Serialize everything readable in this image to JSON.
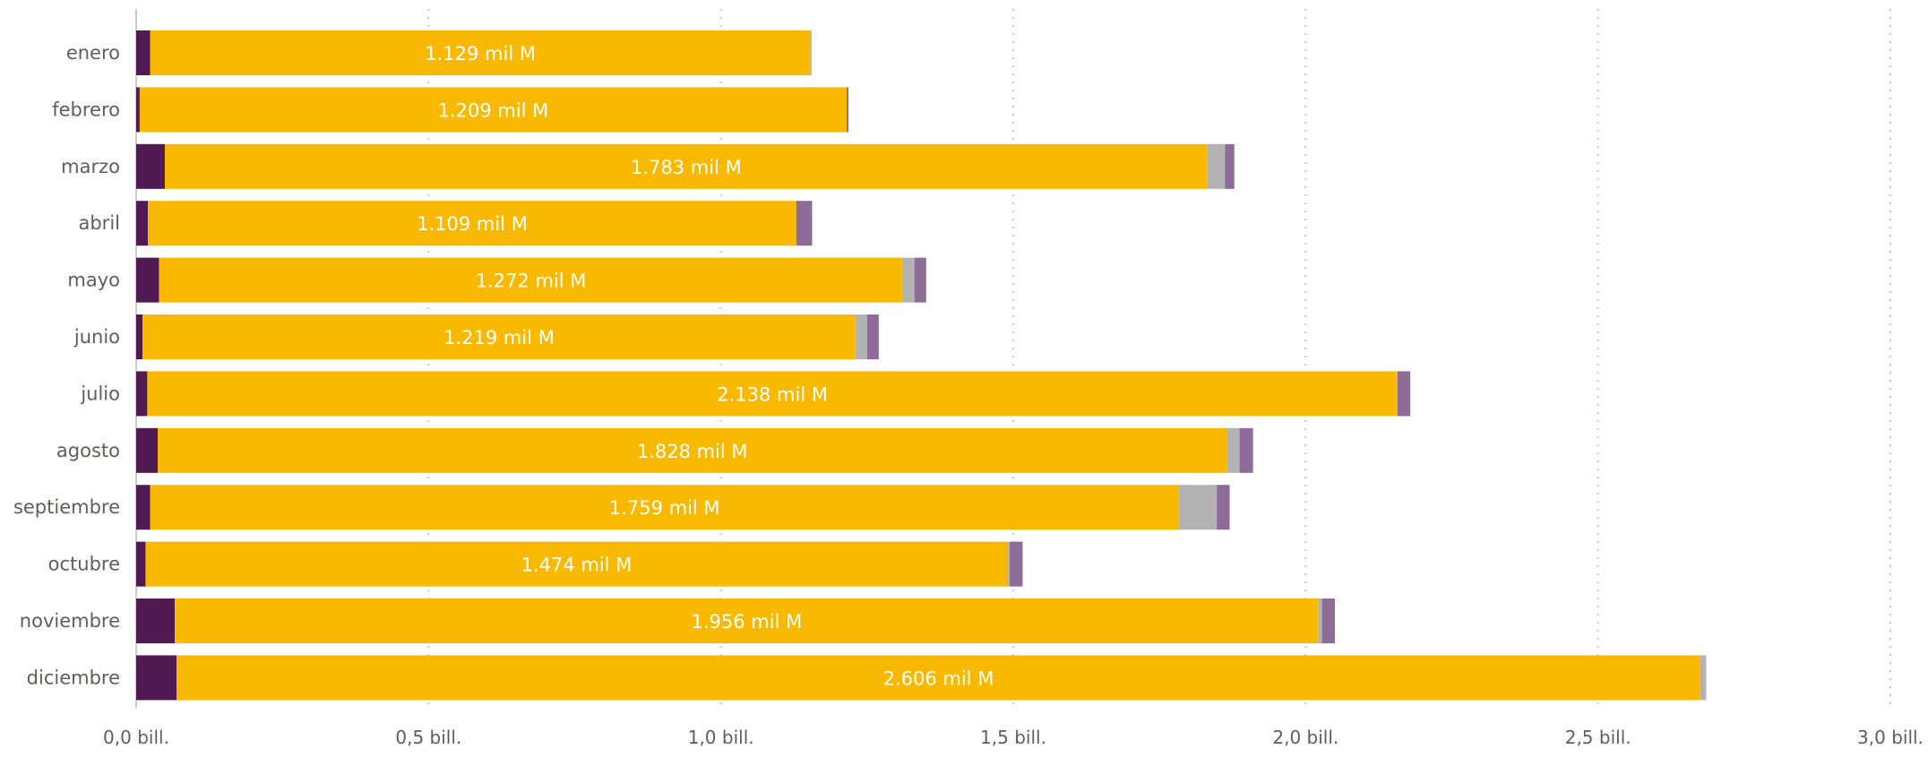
{
  "chart_data": {
    "type": "bar",
    "orientation": "horizontal",
    "stacked": true,
    "categories": [
      "enero",
      "febrero",
      "marzo",
      "abril",
      "mayo",
      "junio",
      "julio",
      "agosto",
      "septiembre",
      "octubre",
      "noviembre",
      "diciembre"
    ],
    "series": [
      {
        "color": "#4f1b52",
        "values": [
          0.024,
          0.006,
          0.049,
          0.02,
          0.039,
          0.011,
          0.019,
          0.037,
          0.024,
          0.016,
          0.066,
          0.069
        ]
      },
      {
        "color": "#f9b900",
        "values": [
          1.129,
          1.209,
          1.783,
          1.109,
          1.272,
          1.219,
          2.138,
          1.828,
          1.759,
          1.474,
          1.956,
          2.606
        ]
      },
      {
        "color": "#b3b3b3",
        "values": [
          0.002,
          0.0,
          0.03,
          0.0,
          0.02,
          0.02,
          0.0,
          0.022,
          0.065,
          0.004,
          0.006,
          0.01
        ]
      },
      {
        "color": "#8e6c98",
        "values": [
          0.0,
          0.003,
          0.016,
          0.027,
          0.02,
          0.02,
          0.022,
          0.023,
          0.022,
          0.022,
          0.022,
          0.0
        ]
      }
    ],
    "data_labels": [
      "1.129 mil M",
      "1.209 mil M",
      "1.783 mil M",
      "1.109 mil M",
      "1.272 mil M",
      "1.219 mil M",
      "2.138 mil M",
      "1.828 mil M",
      "1.759 mil M",
      "1.474 mil M",
      "1.956 mil M",
      "2.606 mil M"
    ],
    "xlim": [
      0,
      3.0
    ],
    "x_ticks": [
      0,
      0.5,
      1.0,
      1.5,
      2.0,
      2.5,
      3.0
    ],
    "x_tick_labels": [
      "0,0 bill.",
      "0,5 bill.",
      "1,0 bill.",
      "1,5 bill.",
      "2,0 bill.",
      "2,5 bill.",
      "3,0 bill."
    ],
    "grid": "vertical-dotted",
    "legend": "none",
    "title": "",
    "xlabel": "",
    "ylabel": ""
  }
}
